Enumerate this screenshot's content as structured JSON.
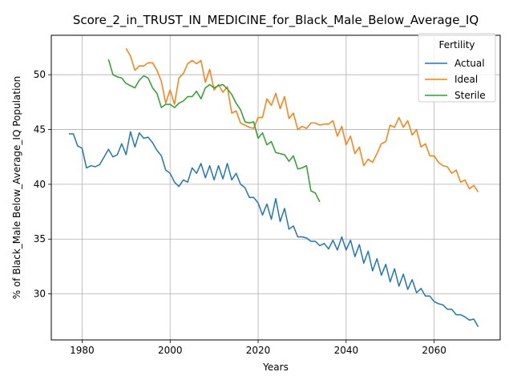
{
  "chart_data": {
    "type": "line",
    "title": "Score_2_in_TRUST_IN_MEDICINE_for_Black_Male_Below_Average_IQ",
    "xlabel": "Years",
    "ylabel": "% of Black_Male Below_Average_IQ Population",
    "xlim": [
      1973,
      2075
    ],
    "ylim": [
      25.8,
      53.6
    ],
    "xticks": [
      1980,
      2000,
      2020,
      2040,
      2060
    ],
    "yticks": [
      30,
      35,
      40,
      45,
      50
    ],
    "grid": true,
    "legend": {
      "title": "Fertility",
      "placement": "top-right"
    },
    "series": [
      {
        "name": "Actual",
        "color": "#1f77b4",
        "x": [
          1977,
          1978,
          1979,
          1980,
          1981,
          1982,
          1983,
          1984,
          1985,
          1986,
          1987,
          1988,
          1989,
          1990,
          1991,
          1992,
          1993,
          1994,
          1995,
          1996,
          1997,
          1998,
          1999,
          2000,
          2001,
          2002,
          2003,
          2004,
          2005,
          2006,
          2007,
          2008,
          2009,
          2010,
          2011,
          2012,
          2013,
          2014,
          2015,
          2016,
          2017,
          2018,
          2019,
          2020,
          2021,
          2022,
          2023,
          2024,
          2025,
          2026,
          2027,
          2028,
          2029,
          2030,
          2031,
          2032,
          2033,
          2034,
          2035,
          2036,
          2037,
          2038,
          2039,
          2040,
          2041,
          2042,
          2043,
          2044,
          2045,
          2046,
          2047,
          2048,
          2049,
          2050,
          2051,
          2052,
          2053,
          2054,
          2055,
          2056,
          2057,
          2058,
          2059,
          2060,
          2061,
          2062,
          2063,
          2064,
          2065,
          2066,
          2067,
          2068,
          2069,
          2070
        ],
        "values": [
          44.6,
          44.6,
          43.5,
          43.3,
          41.5,
          41.7,
          41.6,
          41.8,
          42.5,
          43.2,
          42.5,
          42.7,
          43.7,
          42.7,
          44.8,
          43.4,
          44.7,
          44.2,
          44.3,
          43.8,
          43.1,
          42.6,
          41.3,
          41.0,
          40.2,
          39.8,
          40.4,
          40.2,
          41.5,
          41.0,
          41.9,
          40.6,
          41.7,
          40.4,
          41.7,
          40.5,
          41.9,
          40.4,
          41.0,
          40.0,
          39.7,
          38.8,
          38.8,
          38.3,
          37.2,
          38.2,
          36.8,
          38.7,
          36.6,
          37.8,
          35.9,
          36.2,
          35.2,
          35.2,
          35.1,
          34.8,
          34.8,
          34.4,
          34.6,
          34.1,
          34.9,
          34.0,
          35.2,
          34.0,
          34.9,
          33.4,
          34.5,
          32.8,
          33.9,
          32.1,
          33.2,
          31.7,
          32.7,
          31.1,
          32.3,
          30.7,
          31.8,
          30.4,
          31.3,
          30.1,
          30.5,
          29.8,
          29.8,
          29.3,
          29.1,
          29.0,
          28.6,
          28.6,
          28.1,
          28.1,
          27.9,
          27.6,
          27.7,
          27.0
        ]
      },
      {
        "name": "Ideal",
        "color": "#ff7f0e",
        "x": [
          1990,
          1991,
          1992,
          1993,
          1994,
          1995,
          1996,
          1997,
          1998,
          1999,
          2000,
          2001,
          2002,
          2003,
          2004,
          2005,
          2006,
          2007,
          2008,
          2009,
          2010,
          2011,
          2012,
          2013,
          2014,
          2015,
          2016,
          2017,
          2018,
          2019,
          2020,
          2021,
          2022,
          2023,
          2024,
          2025,
          2026,
          2027,
          2028,
          2029,
          2030,
          2031,
          2032,
          2033,
          2034,
          2035,
          2036,
          2037,
          2038,
          2039,
          2040,
          2041,
          2042,
          2043,
          2044,
          2045,
          2046,
          2047,
          2048,
          2049,
          2050,
          2051,
          2052,
          2053,
          2054,
          2055,
          2056,
          2057,
          2058,
          2059,
          2060,
          2061,
          2062,
          2063,
          2064,
          2065,
          2066,
          2067,
          2068,
          2069,
          2070
        ],
        "values": [
          52.4,
          51.7,
          50.4,
          50.8,
          50.8,
          51.1,
          51.1,
          50.4,
          49.4,
          47.4,
          48.6,
          47.3,
          49.7,
          50.1,
          51.0,
          51.3,
          51.0,
          51.3,
          49.3,
          50.5,
          48.6,
          49.1,
          48.4,
          48.9,
          46.5,
          46.7,
          45.6,
          45.4,
          45.2,
          45.1,
          46.1,
          46.1,
          47.8,
          47.2,
          48.3,
          46.9,
          48.0,
          46.0,
          46.5,
          45.0,
          45.3,
          45.1,
          45.6,
          45.6,
          45.4,
          45.5,
          45.5,
          45.8,
          44.4,
          45.3,
          43.6,
          44.4,
          42.8,
          43.4,
          41.7,
          42.3,
          42.0,
          42.8,
          43.7,
          43.9,
          45.4,
          45.2,
          46.1,
          45.2,
          45.8,
          44.5,
          45.0,
          43.4,
          43.7,
          42.6,
          42.6,
          42.0,
          41.7,
          41.6,
          41.0,
          41.3,
          40.2,
          40.4,
          39.6,
          39.9,
          39.3
        ]
      },
      {
        "name": "Sterile",
        "color": "#2ca02c",
        "x": [
          1986,
          1987,
          1988,
          1989,
          1990,
          1991,
          1992,
          1993,
          1994,
          1995,
          1996,
          1997,
          1998,
          1999,
          2000,
          2001,
          2002,
          2003,
          2004,
          2005,
          2006,
          2007,
          2008,
          2009,
          2010,
          2011,
          2012,
          2013,
          2014,
          2015,
          2016,
          2017,
          2018,
          2019,
          2020,
          2021,
          2022,
          2023,
          2024,
          2025,
          2026,
          2027,
          2028,
          2029,
          2030,
          2031,
          2032,
          2033,
          2034
        ],
        "values": [
          51.4,
          50.0,
          49.8,
          49.7,
          49.2,
          49.0,
          48.8,
          49.5,
          49.9,
          49.7,
          48.8,
          48.3,
          47.0,
          47.3,
          47.3,
          47.0,
          47.4,
          47.6,
          48.0,
          48.0,
          48.5,
          47.8,
          48.8,
          49.1,
          48.8,
          49.0,
          49.1,
          48.7,
          48.2,
          47.4,
          46.8,
          45.7,
          45.6,
          45.7,
          44.2,
          44.7,
          43.6,
          43.9,
          42.9,
          42.8,
          42.7,
          42.1,
          42.6,
          41.4,
          41.5,
          41.7,
          39.4,
          39.2,
          38.4
        ]
      }
    ]
  }
}
